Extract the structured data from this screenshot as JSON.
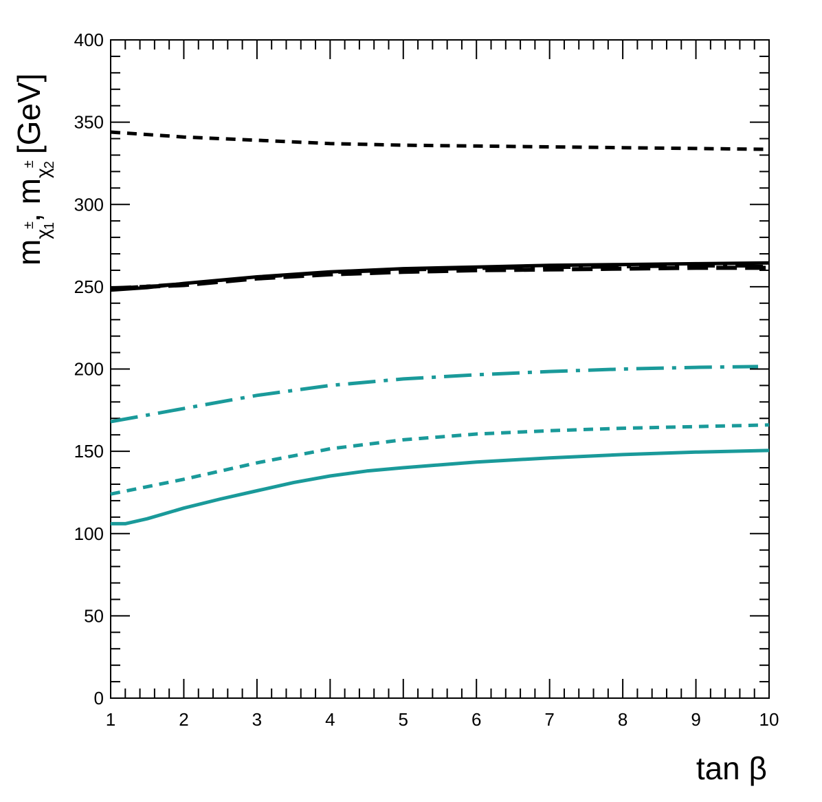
{
  "chart_data": {
    "type": "line",
    "title": "",
    "xlabel": "tan β",
    "ylabel_main": "m",
    "ylabel_sub1": "χ",
    "ylabel_sup1": "±",
    "ylabel_idx1": "1",
    "ylabel_sep": ", m",
    "ylabel_sub2": "χ",
    "ylabel_sup2": "±",
    "ylabel_idx2": "2",
    "ylabel_unit": "[GeV]",
    "xlim": [
      1,
      10
    ],
    "ylim": [
      0,
      400
    ],
    "xticks": [
      "1",
      "2",
      "3",
      "4",
      "5",
      "6",
      "7",
      "8",
      "9",
      "10"
    ],
    "yticks": [
      "0",
      "50",
      "100",
      "150",
      "200",
      "250",
      "300",
      "350",
      "400"
    ],
    "series": [
      {
        "name": "black-dashed-upper",
        "color": "#000000",
        "style": "dash",
        "width": 5,
        "x": [
          1,
          2,
          3,
          4,
          5,
          6,
          7,
          8,
          9,
          10
        ],
        "y": [
          344,
          341,
          339,
          337,
          336,
          335.5,
          335,
          334.5,
          334,
          333.5
        ]
      },
      {
        "name": "black-longdash",
        "color": "#000000",
        "style": "longdash",
        "width": 6,
        "x": [
          1,
          2,
          3,
          4,
          5,
          6,
          7,
          8,
          9,
          10
        ],
        "y": [
          249,
          251,
          255,
          257.5,
          259,
          260,
          260.5,
          261,
          261.5,
          261.5
        ]
      },
      {
        "name": "black-dashdot",
        "color": "#000000",
        "style": "dashdot",
        "width": 4,
        "x": [
          1,
          2,
          3,
          4,
          5,
          6,
          7,
          8,
          9,
          10
        ],
        "y": [
          249,
          252,
          255.5,
          258.5,
          260,
          261,
          261.5,
          262,
          262.5,
          262.5
        ]
      },
      {
        "name": "black-solid",
        "color": "#000000",
        "style": "solid",
        "width": 5,
        "x": [
          1,
          1.5,
          2,
          3,
          4,
          5,
          6,
          7,
          8,
          9,
          10
        ],
        "y": [
          248,
          249.5,
          252,
          256,
          259,
          261,
          262,
          263,
          263.5,
          264,
          264.5
        ]
      },
      {
        "name": "teal-dashdot",
        "color": "#1a9a9a",
        "style": "dashdot",
        "width": 5,
        "x": [
          1,
          2,
          3,
          4,
          5,
          6,
          7,
          8,
          9,
          9.85
        ],
        "y": [
          168,
          176,
          184,
          190,
          194,
          196.5,
          198.5,
          200,
          201,
          201.5
        ]
      },
      {
        "name": "teal-dashed",
        "color": "#1a9a9a",
        "style": "dash",
        "width": 5,
        "x": [
          1,
          2,
          3,
          4,
          5,
          6,
          7,
          8,
          9,
          10
        ],
        "y": [
          124,
          133,
          143,
          151.5,
          157,
          160.5,
          162.5,
          164,
          165,
          166
        ]
      },
      {
        "name": "teal-solid",
        "color": "#1a9a9a",
        "style": "solid",
        "width": 5,
        "x": [
          1,
          1.2,
          1.5,
          2,
          2.5,
          3,
          3.5,
          4,
          4.5,
          5,
          6,
          7,
          8,
          9,
          10
        ],
        "y": [
          106,
          106,
          109,
          115.5,
          121,
          126,
          131,
          135,
          138,
          140,
          143.5,
          146,
          148,
          149.5,
          150.5
        ]
      }
    ]
  }
}
